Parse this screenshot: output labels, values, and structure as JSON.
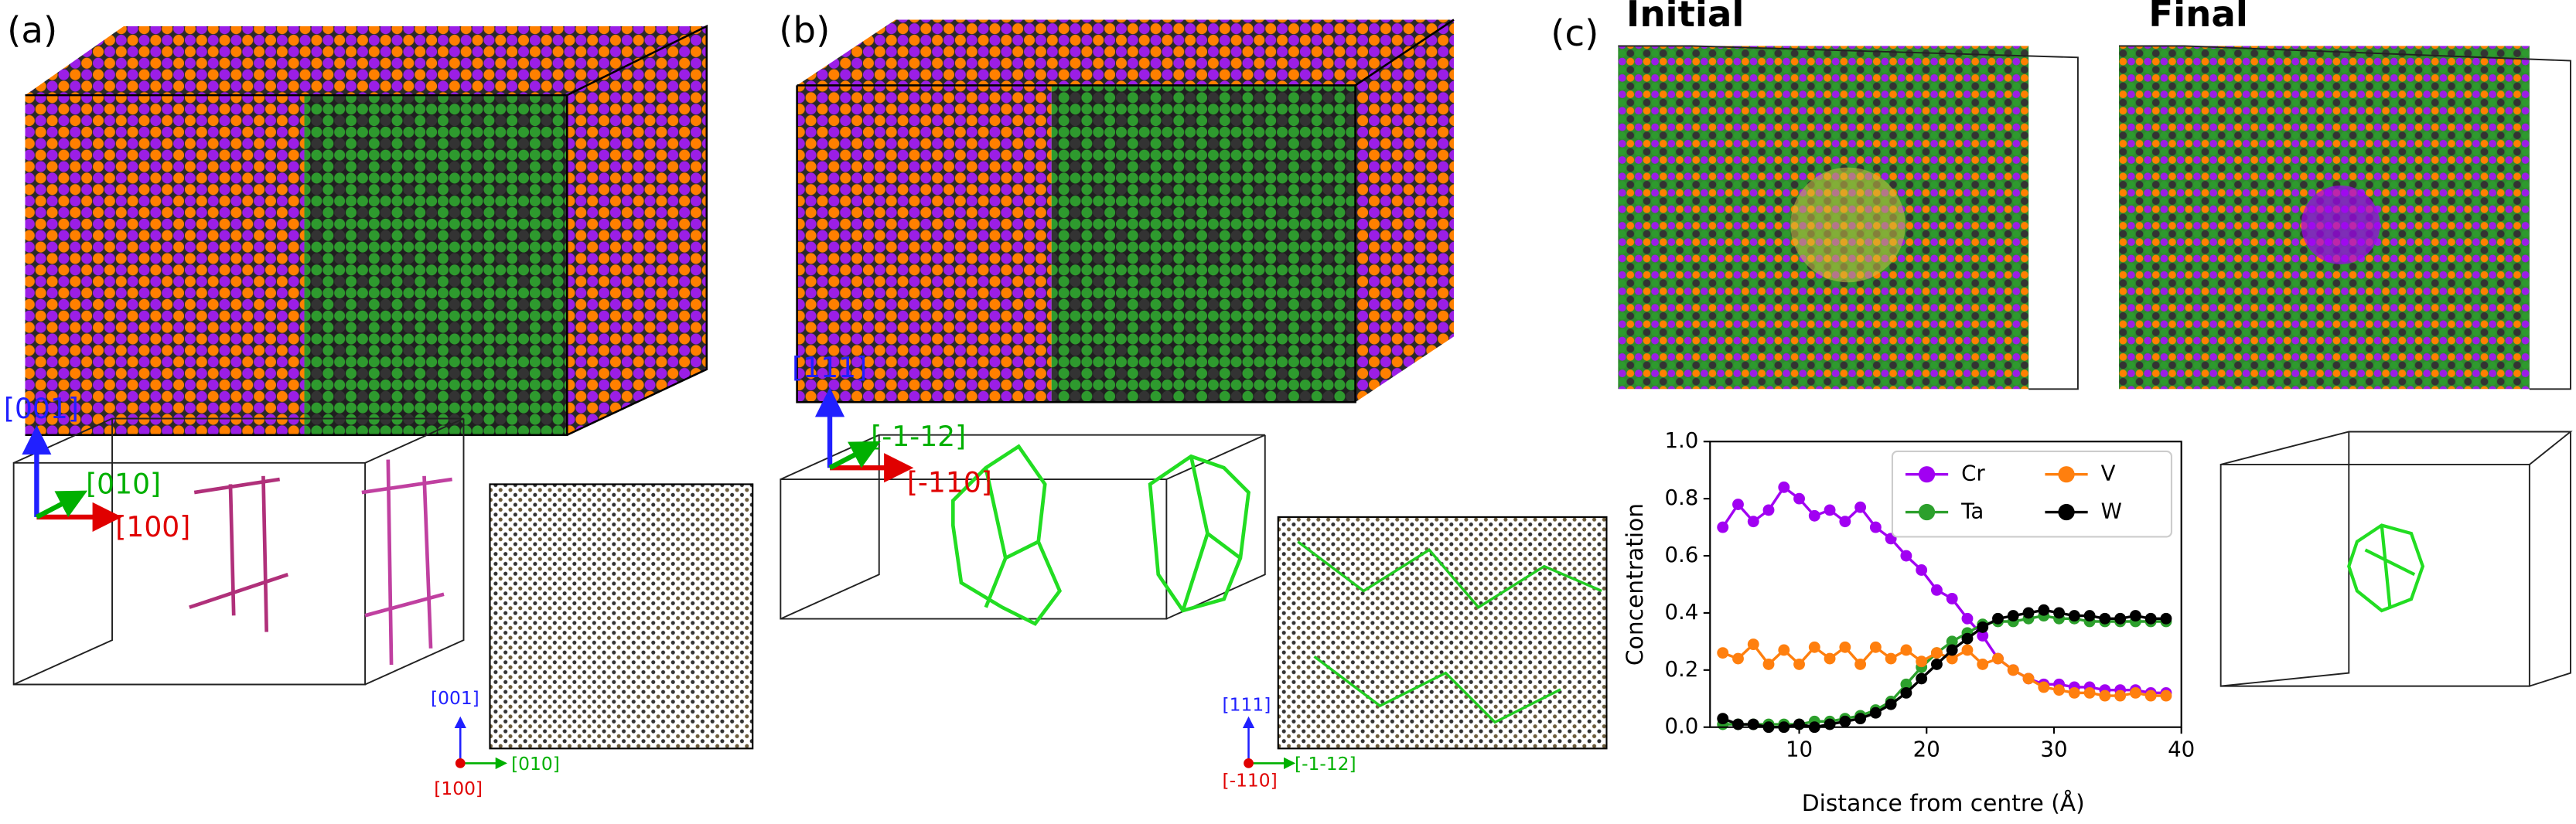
{
  "panels": {
    "a": {
      "label": "(a)",
      "triad": [
        "[001]",
        "[010]",
        "[100]"
      ],
      "mini_triad": [
        "[001]",
        "[010]",
        "[100]"
      ]
    },
    "b": {
      "label": "(b)",
      "triad": [
        "[111]",
        "[-1-12]",
        "[-110]"
      ],
      "mini_triad": [
        "[111]",
        "[-1-12]",
        "[-110]"
      ]
    },
    "c": {
      "label": "(c)",
      "initial": "Initial",
      "final": "Final"
    }
  },
  "chart_data": {
    "type": "line",
    "xlabel": "Distance from centre (Å)",
    "ylabel": "Concentration",
    "x": [
      4.0,
      5.2,
      6.4,
      7.6,
      8.8,
      10.0,
      11.2,
      12.4,
      13.6,
      14.8,
      16.0,
      17.2,
      18.4,
      19.6,
      20.8,
      22.0,
      23.2,
      24.4,
      25.6,
      26.8,
      28.0,
      29.2,
      30.4,
      31.6,
      32.8,
      34.0,
      35.2,
      36.4,
      37.6,
      38.8
    ],
    "series": [
      {
        "name": "Cr",
        "color": "#a100f2",
        "values": [
          0.7,
          0.78,
          0.72,
          0.76,
          0.84,
          0.8,
          0.74,
          0.76,
          0.72,
          0.77,
          0.7,
          0.66,
          0.6,
          0.55,
          0.48,
          0.45,
          0.38,
          0.32,
          0.24,
          0.2,
          0.17,
          0.15,
          0.15,
          0.14,
          0.14,
          0.13,
          0.13,
          0.13,
          0.12,
          0.12
        ]
      },
      {
        "name": "Ta",
        "color": "#2ca02c",
        "values": [
          0.01,
          0.01,
          0.01,
          0.01,
          0.01,
          0.01,
          0.02,
          0.02,
          0.03,
          0.04,
          0.06,
          0.09,
          0.15,
          0.21,
          0.26,
          0.3,
          0.33,
          0.36,
          0.37,
          0.37,
          0.38,
          0.39,
          0.38,
          0.38,
          0.37,
          0.37,
          0.37,
          0.37,
          0.37,
          0.37
        ]
      },
      {
        "name": "V",
        "color": "#ff7f0e",
        "values": [
          0.26,
          0.24,
          0.29,
          0.22,
          0.27,
          0.22,
          0.28,
          0.24,
          0.28,
          0.22,
          0.28,
          0.24,
          0.27,
          0.23,
          0.26,
          0.24,
          0.27,
          0.22,
          0.24,
          0.2,
          0.17,
          0.14,
          0.13,
          0.12,
          0.12,
          0.11,
          0.11,
          0.12,
          0.11,
          0.11
        ]
      },
      {
        "name": "W",
        "color": "#000000",
        "values": [
          0.03,
          0.01,
          0.01,
          0.0,
          0.0,
          0.01,
          0.0,
          0.01,
          0.02,
          0.03,
          0.05,
          0.08,
          0.12,
          0.17,
          0.22,
          0.27,
          0.31,
          0.35,
          0.38,
          0.39,
          0.4,
          0.41,
          0.4,
          0.39,
          0.39,
          0.38,
          0.38,
          0.39,
          0.38,
          0.38
        ]
      }
    ],
    "xlim": [
      3,
      40
    ],
    "xticks": [
      10,
      20,
      30,
      40
    ],
    "ylim": [
      0,
      1
    ],
    "yticks": [
      {
        "value": 0,
        "label": "0.0"
      },
      0.2,
      0.4,
      0.6,
      0.8,
      {
        "value": 1,
        "label": "1.0"
      }
    ],
    "legend": "upper right"
  }
}
